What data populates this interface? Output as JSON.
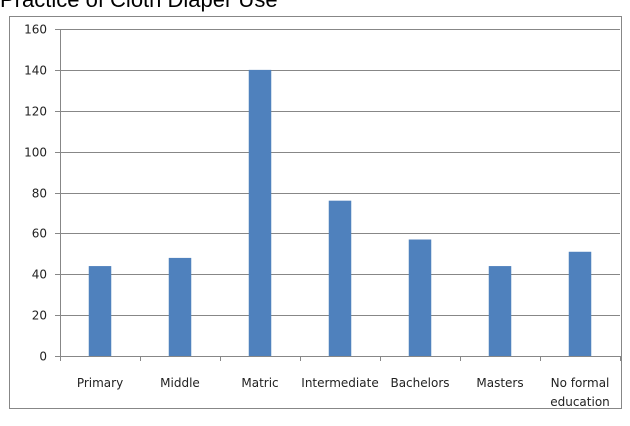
{
  "chart_data": {
    "type": "bar",
    "title": "Practice of Cloth Diaper Use",
    "categories": [
      [
        "Primary"
      ],
      [
        "Middle"
      ],
      [
        "Matric"
      ],
      [
        "Intermediate"
      ],
      [
        "Bachelors"
      ],
      [
        "Masters"
      ],
      [
        "No formal",
        "education"
      ]
    ],
    "values": [
      44,
      48,
      140,
      76,
      57,
      44,
      51
    ],
    "yticks": [
      0,
      20,
      40,
      60,
      80,
      100,
      120,
      140,
      160
    ],
    "ylim": [
      0,
      160
    ],
    "xlabel": "",
    "ylabel": "",
    "grid": true,
    "legend": "none",
    "colors": {
      "bar": "#4f81bd",
      "grid": "#878787",
      "axis": "#878787",
      "frame": "#878787"
    }
  }
}
